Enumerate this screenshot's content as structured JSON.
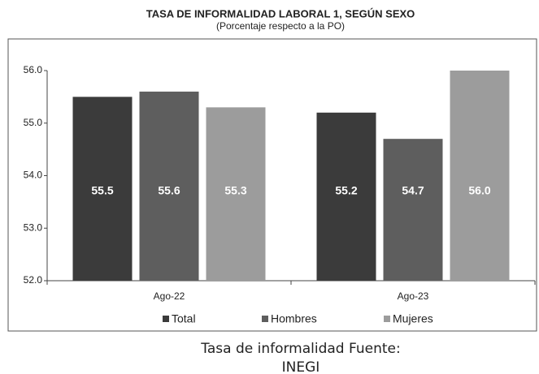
{
  "chart_data": {
    "type": "bar",
    "title": "TASA DE INFORMALIDAD LABORAL 1, SEGÚN SEXO",
    "subtitle": "(Porcentaje respecto a la PO)",
    "categories": [
      "Ago-22",
      "Ago-23"
    ],
    "series": [
      {
        "name": "Total",
        "color": "#3b3b3b",
        "values": [
          55.5,
          55.2
        ],
        "value_labels": [
          "55.5",
          "55.2"
        ]
      },
      {
        "name": "Hombres",
        "color": "#5e5e5e",
        "values": [
          55.6,
          54.7
        ],
        "value_labels": [
          "55.6",
          "54.7"
        ]
      },
      {
        "name": "Mujeres",
        "color": "#9c9c9c",
        "values": [
          55.3,
          56
        ],
        "value_labels": [
          "55.3",
          "56.0"
        ]
      }
    ],
    "ylim": [
      52,
      56
    ],
    "yticks": [
      {
        "value": 52,
        "label": "52.0"
      },
      {
        "value": 53,
        "label": "53.0"
      },
      {
        "value": 54,
        "label": "54.0"
      },
      {
        "value": 55,
        "label": "55.0"
      },
      {
        "value": 56,
        "label": "56.0"
      }
    ],
    "grid": false,
    "legend": "bottom",
    "caption": [
      "Tasa de informalidad Fuente:",
      "INEGI"
    ]
  }
}
